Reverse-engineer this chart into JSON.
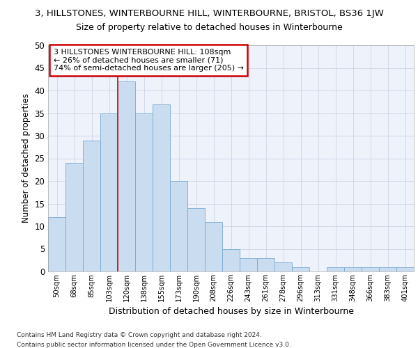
{
  "title": "3, HILLSTONES, WINTERBOURNE HILL, WINTERBOURNE, BRISTOL, BS36 1JW",
  "subtitle": "Size of property relative to detached houses in Winterbourne",
  "xlabel": "Distribution of detached houses by size in Winterbourne",
  "ylabel": "Number of detached properties",
  "categories": [
    "50sqm",
    "68sqm",
    "85sqm",
    "103sqm",
    "120sqm",
    "138sqm",
    "155sqm",
    "173sqm",
    "190sqm",
    "208sqm",
    "226sqm",
    "243sqm",
    "261sqm",
    "278sqm",
    "296sqm",
    "313sqm",
    "331sqm",
    "348sqm",
    "366sqm",
    "383sqm",
    "401sqm"
  ],
  "values": [
    12,
    24,
    29,
    35,
    42,
    35,
    37,
    20,
    14,
    11,
    5,
    3,
    3,
    2,
    1,
    0,
    1,
    1,
    1,
    1,
    1
  ],
  "bar_color": "#c9dcf0",
  "bar_edge_color": "#7aaad0",
  "ylim": [
    0,
    50
  ],
  "yticks": [
    0,
    5,
    10,
    15,
    20,
    25,
    30,
    35,
    40,
    45,
    50
  ],
  "grid_color": "#c8d0e0",
  "bg_color": "#edf2fb",
  "annotation_text": "3 HILLSTONES WINTERBOURNE HILL: 108sqm\n← 26% of detached houses are smaller (71)\n74% of semi-detached houses are larger (205) →",
  "annotation_box_color": "#ffffff",
  "annotation_box_edge": "#cc0000",
  "redline_x": 3.5,
  "footer1": "Contains HM Land Registry data © Crown copyright and database right 2024.",
  "footer2": "Contains public sector information licensed under the Open Government Licence v3.0."
}
